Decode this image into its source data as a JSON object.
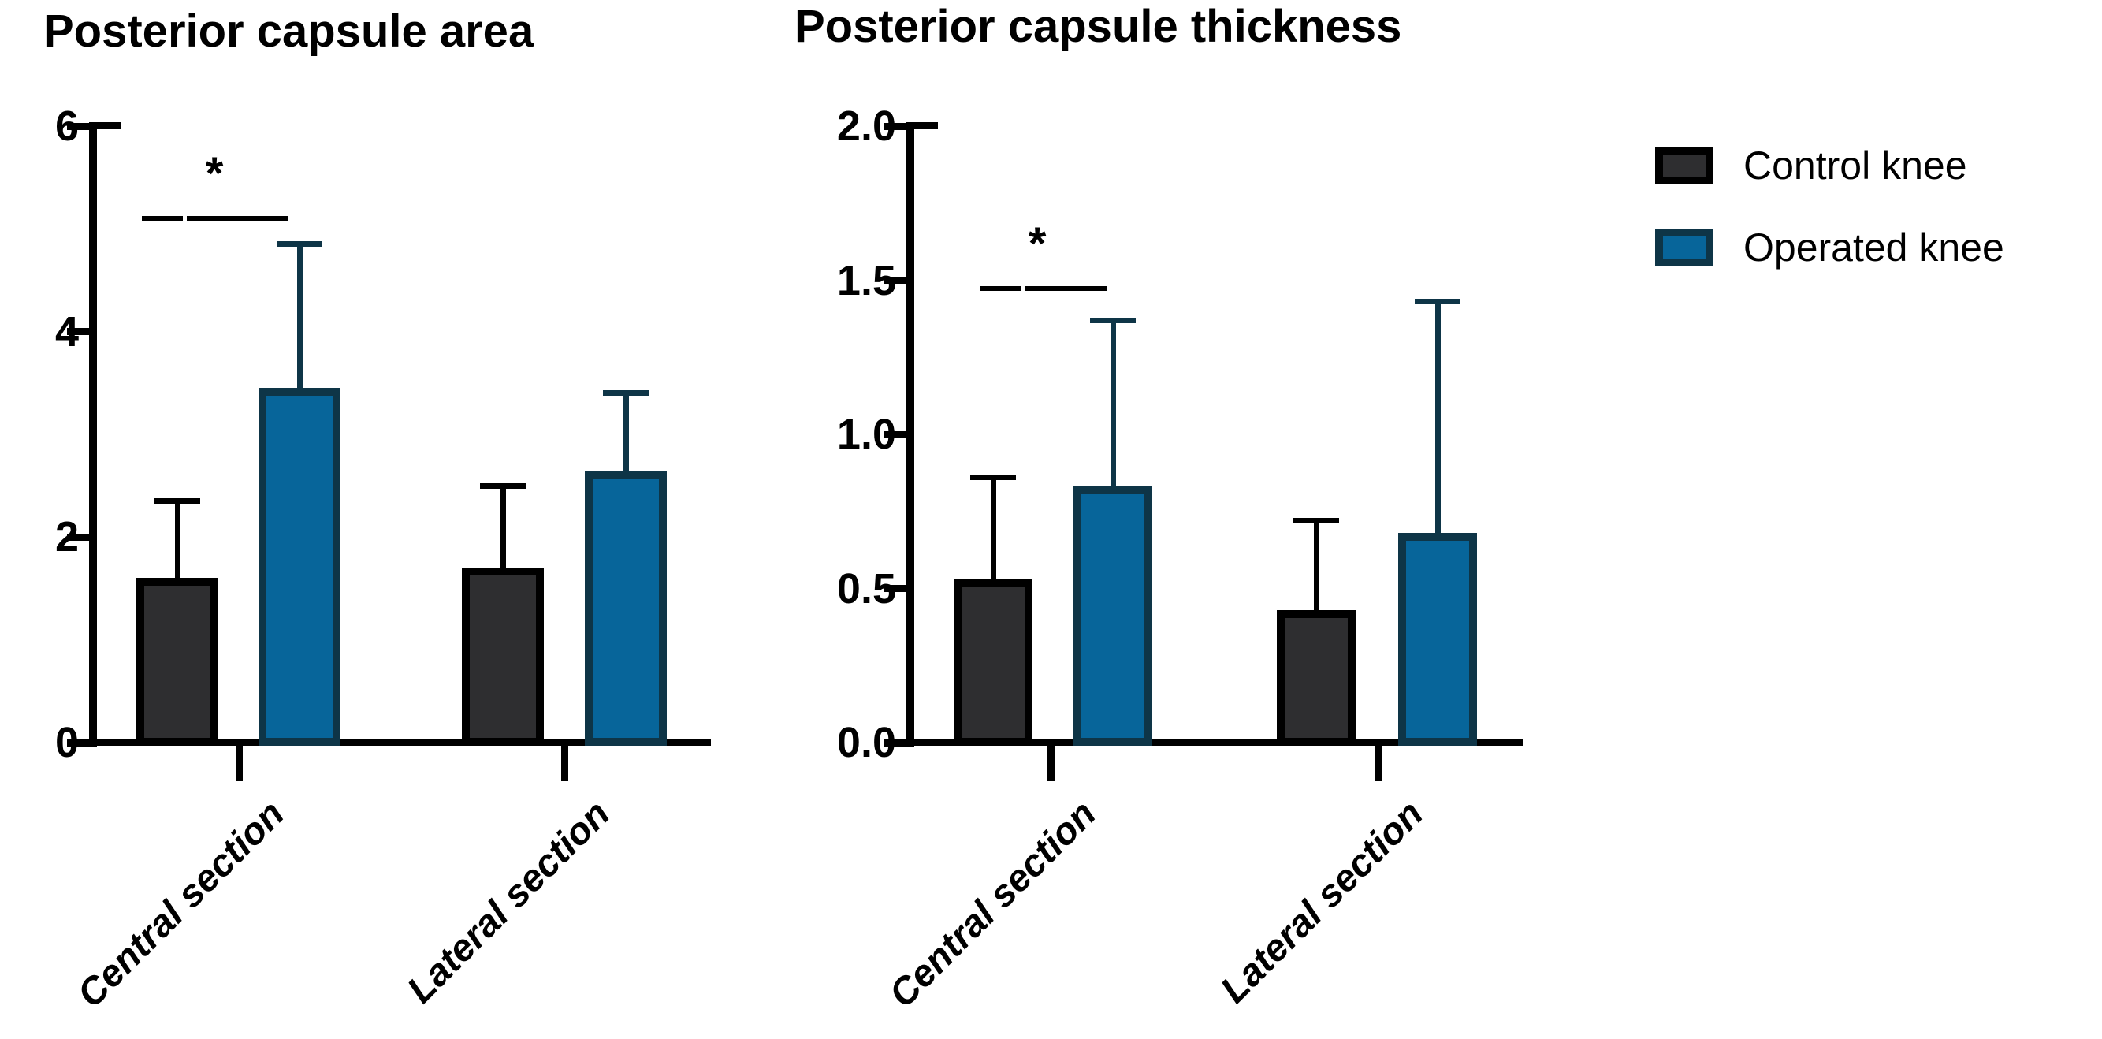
{
  "figure": {
    "significance_symbol": "*",
    "legend": {
      "items": [
        {
          "label": "Control knee",
          "fill": "#2e2e30",
          "border": "#000000"
        },
        {
          "label": "Operated knee",
          "fill": "#07659a",
          "border": "#0e3547"
        }
      ]
    }
  },
  "chart_data": [
    {
      "type": "bar",
      "title": "Posterior capsule area",
      "categories": [
        "Central section",
        "Lateral section"
      ],
      "series": [
        {
          "name": "Control knee",
          "values": [
            1.6,
            1.7
          ],
          "error_top": [
            2.35,
            2.5
          ],
          "fill": "#2e2e30",
          "border": "#000000",
          "error_color": "#000000"
        },
        {
          "name": "Operated knee",
          "values": [
            3.45,
            2.65
          ],
          "error_top": [
            4.85,
            3.4
          ],
          "fill": "#07659a",
          "border": "#0e3547",
          "error_color": "#0e3547"
        }
      ],
      "ylim": [
        0,
        6
      ],
      "yticks": [
        0,
        2,
        4,
        6
      ],
      "ytick_labels": [
        "0",
        "2",
        "4",
        "6"
      ],
      "significance": [
        {
          "category": "Central section",
          "between": [
            "Control knee",
            "Operated knee"
          ],
          "label": "*"
        }
      ],
      "grid": false,
      "legend_position": "right"
    },
    {
      "type": "bar",
      "title": "Posterior capsule thickness",
      "categories": [
        "Central section",
        "Lateral section"
      ],
      "series": [
        {
          "name": "Control knee",
          "values": [
            0.53,
            0.43
          ],
          "error_top": [
            0.86,
            0.72
          ],
          "fill": "#2e2e30",
          "border": "#000000",
          "error_color": "#000000"
        },
        {
          "name": "Operated knee",
          "values": [
            0.83,
            0.68
          ],
          "error_top": [
            1.37,
            1.43
          ],
          "fill": "#07659a",
          "border": "#0e3547",
          "error_color": "#0e3547"
        }
      ],
      "ylim": [
        0,
        2
      ],
      "yticks": [
        0,
        0.5,
        1.0,
        1.5,
        2.0
      ],
      "ytick_labels": [
        "0.0",
        "0.5",
        "1.0",
        "1.5",
        "2.0"
      ],
      "significance": [
        {
          "category": "Central section",
          "between": [
            "Control knee",
            "Operated knee"
          ],
          "label": "*"
        }
      ],
      "grid": false,
      "legend_position": "right"
    }
  ]
}
